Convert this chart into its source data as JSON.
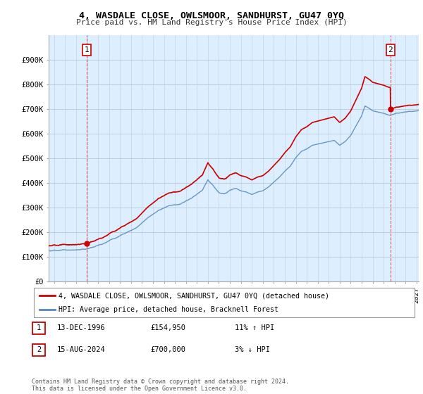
{
  "title": "4, WASDALE CLOSE, OWLSMOOR, SANDHURST, GU47 0YQ",
  "subtitle": "Price paid vs. HM Land Registry's House Price Index (HPI)",
  "ylabel_ticks": [
    "£0",
    "£100K",
    "£200K",
    "£300K",
    "£400K",
    "£500K",
    "£600K",
    "£700K",
    "£800K",
    "£900K"
  ],
  "ytick_vals": [
    0,
    100000,
    200000,
    300000,
    400000,
    500000,
    600000,
    700000,
    800000,
    900000
  ],
  "ylim": [
    0,
    1000000
  ],
  "xlim_start": 1993.5,
  "xlim_end": 2027.2,
  "grid_color": "#bbccdd",
  "plot_bg_color": "#ddeeff",
  "sale1_x": 1996.96,
  "sale1_y": 154950,
  "sale2_x": 2024.62,
  "sale2_y": 700000,
  "sale_color": "#cc0000",
  "hpi_color": "#5588bb",
  "legend_label1": "4, WASDALE CLOSE, OWLSMOOR, SANDHURST, GU47 0YQ (detached house)",
  "legend_label2": "HPI: Average price, detached house, Bracknell Forest",
  "annotation1_label": "1",
  "annotation2_label": "2",
  "table_row1": [
    "1",
    "13-DEC-1996",
    "£154,950",
    "11% ↑ HPI"
  ],
  "table_row2": [
    "2",
    "15-AUG-2024",
    "£700,000",
    "3% ↓ HPI"
  ],
  "footer": "Contains HM Land Registry data © Crown copyright and database right 2024.\nThis data is licensed under the Open Government Licence v3.0.",
  "bg_color": "#ffffff"
}
